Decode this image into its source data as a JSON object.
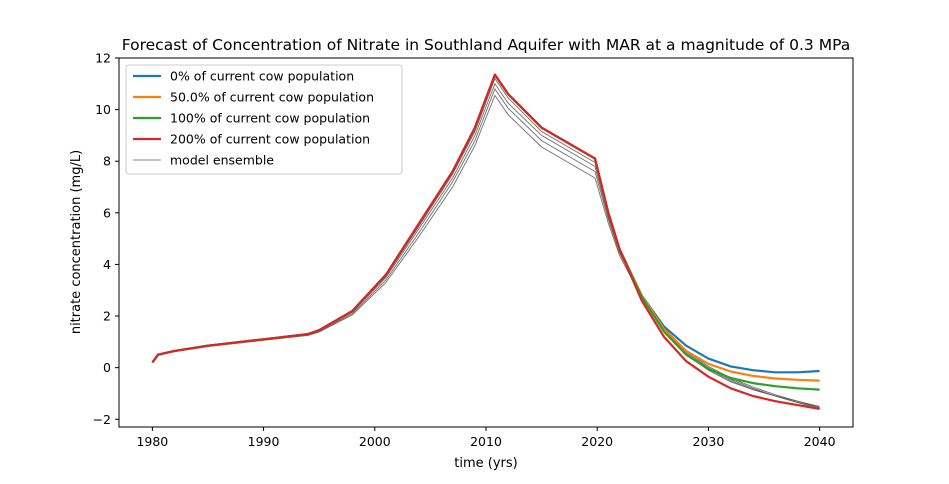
{
  "chart_data": {
    "type": "line",
    "title": "Forecast of Concentration of Nitrate in Southland Aquifer with MAR at a magnitude of 0.3 MPa",
    "xlabel": "time (yrs)",
    "ylabel": "nitrate concentration (mg/L)",
    "xlim": [
      1977,
      2043
    ],
    "ylim": [
      -2.3,
      12.0
    ],
    "xticks": [
      1980,
      1990,
      2000,
      2010,
      2020,
      2030,
      2040
    ],
    "yticks": [
      -2,
      0,
      2,
      4,
      6,
      8,
      10,
      12
    ],
    "grid": false,
    "legend_position": "top-left",
    "series": [
      {
        "name": "0% of current cow population",
        "color": "#1f77b4",
        "points": [
          [
            1980,
            0.2
          ],
          [
            1980.5,
            0.5
          ],
          [
            1982,
            0.65
          ],
          [
            1985,
            0.85
          ],
          [
            1990,
            1.1
          ],
          [
            1994,
            1.3
          ],
          [
            1995,
            1.45
          ],
          [
            1998,
            2.2
          ],
          [
            2001,
            3.6
          ],
          [
            2004,
            5.6
          ],
          [
            2007,
            7.6
          ],
          [
            2009,
            9.3
          ],
          [
            2010.8,
            11.35
          ],
          [
            2012,
            10.6
          ],
          [
            2015,
            9.3
          ],
          [
            2019.8,
            8.1
          ],
          [
            2021,
            6.0
          ],
          [
            2022,
            4.6
          ],
          [
            2024,
            2.8
          ],
          [
            2026,
            1.6
          ],
          [
            2028,
            0.85
          ],
          [
            2030,
            0.35
          ],
          [
            2032,
            0.05
          ],
          [
            2034,
            -0.1
          ],
          [
            2036,
            -0.18
          ],
          [
            2038,
            -0.18
          ],
          [
            2040,
            -0.13
          ]
        ]
      },
      {
        "name": "50.0% of current cow population",
        "color": "#ff7f0e",
        "points": [
          [
            1980,
            0.2
          ],
          [
            1980.5,
            0.5
          ],
          [
            1982,
            0.65
          ],
          [
            1985,
            0.85
          ],
          [
            1990,
            1.1
          ],
          [
            1994,
            1.3
          ],
          [
            1995,
            1.45
          ],
          [
            1998,
            2.2
          ],
          [
            2001,
            3.6
          ],
          [
            2004,
            5.6
          ],
          [
            2007,
            7.6
          ],
          [
            2009,
            9.3
          ],
          [
            2010.8,
            11.35
          ],
          [
            2012,
            10.6
          ],
          [
            2015,
            9.3
          ],
          [
            2019.8,
            8.1
          ],
          [
            2021,
            6.0
          ],
          [
            2022,
            4.6
          ],
          [
            2024,
            2.8
          ],
          [
            2026,
            1.5
          ],
          [
            2028,
            0.65
          ],
          [
            2030,
            0.15
          ],
          [
            2032,
            -0.15
          ],
          [
            2034,
            -0.32
          ],
          [
            2036,
            -0.42
          ],
          [
            2038,
            -0.47
          ],
          [
            2040,
            -0.5
          ]
        ]
      },
      {
        "name": "100% of current cow population",
        "color": "#2ca02c",
        "points": [
          [
            1980,
            0.2
          ],
          [
            1980.5,
            0.5
          ],
          [
            1982,
            0.65
          ],
          [
            1985,
            0.85
          ],
          [
            1990,
            1.1
          ],
          [
            1994,
            1.3
          ],
          [
            1995,
            1.45
          ],
          [
            1998,
            2.2
          ],
          [
            2001,
            3.6
          ],
          [
            2004,
            5.6
          ],
          [
            2007,
            7.6
          ],
          [
            2009,
            9.3
          ],
          [
            2010.8,
            11.35
          ],
          [
            2012,
            10.6
          ],
          [
            2015,
            9.3
          ],
          [
            2019.8,
            8.1
          ],
          [
            2021,
            6.0
          ],
          [
            2022,
            4.6
          ],
          [
            2024,
            2.75
          ],
          [
            2026,
            1.4
          ],
          [
            2028,
            0.5
          ],
          [
            2030,
            -0.05
          ],
          [
            2032,
            -0.4
          ],
          [
            2034,
            -0.6
          ],
          [
            2036,
            -0.72
          ],
          [
            2038,
            -0.8
          ],
          [
            2040,
            -0.85
          ]
        ]
      },
      {
        "name": "200% of current cow population",
        "color": "#d62728",
        "points": [
          [
            1980,
            0.2
          ],
          [
            1980.5,
            0.5
          ],
          [
            1982,
            0.65
          ],
          [
            1985,
            0.85
          ],
          [
            1990,
            1.1
          ],
          [
            1994,
            1.3
          ],
          [
            1995,
            1.45
          ],
          [
            1998,
            2.2
          ],
          [
            2001,
            3.6
          ],
          [
            2004,
            5.6
          ],
          [
            2007,
            7.6
          ],
          [
            2009,
            9.3
          ],
          [
            2010.8,
            11.35
          ],
          [
            2012,
            10.6
          ],
          [
            2015,
            9.3
          ],
          [
            2019.8,
            8.1
          ],
          [
            2021,
            6.0
          ],
          [
            2022,
            4.6
          ],
          [
            2024,
            2.6
          ],
          [
            2026,
            1.2
          ],
          [
            2028,
            0.25
          ],
          [
            2030,
            -0.35
          ],
          [
            2032,
            -0.8
          ],
          [
            2034,
            -1.1
          ],
          [
            2036,
            -1.3
          ],
          [
            2038,
            -1.45
          ],
          [
            2040,
            -1.6
          ]
        ]
      }
    ],
    "ensemble": {
      "name": "model ensemble",
      "color": "#555555",
      "members": [
        [
          [
            1980,
            0.2
          ],
          [
            1980.5,
            0.5
          ],
          [
            1982,
            0.62
          ],
          [
            1985,
            0.82
          ],
          [
            1990,
            1.06
          ],
          [
            1994,
            1.25
          ],
          [
            1995,
            1.38
          ],
          [
            1998,
            2.05
          ],
          [
            2001,
            3.3
          ],
          [
            2004,
            5.1
          ],
          [
            2007,
            7.0
          ],
          [
            2009,
            8.6
          ],
          [
            2010.8,
            10.55
          ],
          [
            2012,
            9.8
          ],
          [
            2015,
            8.55
          ],
          [
            2019.8,
            7.35
          ],
          [
            2021,
            5.6
          ],
          [
            2022,
            4.35
          ],
          [
            2024,
            2.7
          ],
          [
            2026,
            1.4
          ],
          [
            2028,
            0.5
          ],
          [
            2030,
            -0.1
          ],
          [
            2032,
            -0.55
          ],
          [
            2034,
            -0.85
          ],
          [
            2036,
            -1.1
          ],
          [
            2038,
            -1.3
          ],
          [
            2040,
            -1.5
          ]
        ],
        [
          [
            1980,
            0.2
          ],
          [
            1980.5,
            0.5
          ],
          [
            1982,
            0.63
          ],
          [
            1985,
            0.83
          ],
          [
            1990,
            1.07
          ],
          [
            1994,
            1.27
          ],
          [
            1995,
            1.4
          ],
          [
            1998,
            2.1
          ],
          [
            2001,
            3.4
          ],
          [
            2004,
            5.25
          ],
          [
            2007,
            7.2
          ],
          [
            2009,
            8.8
          ],
          [
            2010.8,
            10.8
          ],
          [
            2012,
            10.05
          ],
          [
            2015,
            8.8
          ],
          [
            2019.8,
            7.6
          ],
          [
            2021,
            5.75
          ],
          [
            2022,
            4.45
          ],
          [
            2024,
            2.75
          ],
          [
            2026,
            1.45
          ],
          [
            2028,
            0.55
          ],
          [
            2030,
            -0.05
          ],
          [
            2032,
            -0.5
          ],
          [
            2034,
            -0.85
          ],
          [
            2036,
            -1.1
          ],
          [
            2038,
            -1.35
          ],
          [
            2040,
            -1.55
          ]
        ],
        [
          [
            1980,
            0.2
          ],
          [
            1980.5,
            0.5
          ],
          [
            1982,
            0.64
          ],
          [
            1985,
            0.84
          ],
          [
            1990,
            1.08
          ],
          [
            1994,
            1.28
          ],
          [
            1995,
            1.42
          ],
          [
            1998,
            2.15
          ],
          [
            2001,
            3.5
          ],
          [
            2004,
            5.4
          ],
          [
            2007,
            7.35
          ],
          [
            2009,
            9.0
          ],
          [
            2010.8,
            11.0
          ],
          [
            2012,
            10.25
          ],
          [
            2015,
            9.0
          ],
          [
            2019.8,
            7.8
          ],
          [
            2021,
            5.85
          ],
          [
            2022,
            4.5
          ],
          [
            2024,
            2.8
          ],
          [
            2026,
            1.5
          ],
          [
            2028,
            0.6
          ],
          [
            2030,
            0.0
          ],
          [
            2032,
            -0.45
          ],
          [
            2034,
            -0.8
          ],
          [
            2036,
            -1.1
          ],
          [
            2038,
            -1.35
          ],
          [
            2040,
            -1.6
          ]
        ],
        [
          [
            1980,
            0.2
          ],
          [
            1980.5,
            0.5
          ],
          [
            1982,
            0.65
          ],
          [
            1985,
            0.85
          ],
          [
            1990,
            1.1
          ],
          [
            1994,
            1.3
          ],
          [
            1995,
            1.44
          ],
          [
            1998,
            2.18
          ],
          [
            2001,
            3.55
          ],
          [
            2004,
            5.5
          ],
          [
            2007,
            7.5
          ],
          [
            2009,
            9.15
          ],
          [
            2010.8,
            11.2
          ],
          [
            2012,
            10.45
          ],
          [
            2015,
            9.15
          ],
          [
            2019.8,
            7.95
          ],
          [
            2021,
            5.95
          ],
          [
            2022,
            4.55
          ],
          [
            2024,
            2.85
          ],
          [
            2026,
            1.55
          ],
          [
            2028,
            0.65
          ],
          [
            2030,
            0.05
          ],
          [
            2032,
            -0.4
          ],
          [
            2034,
            -0.75
          ],
          [
            2036,
            -1.05
          ],
          [
            2038,
            -1.3
          ],
          [
            2040,
            -1.55
          ]
        ]
      ]
    }
  }
}
